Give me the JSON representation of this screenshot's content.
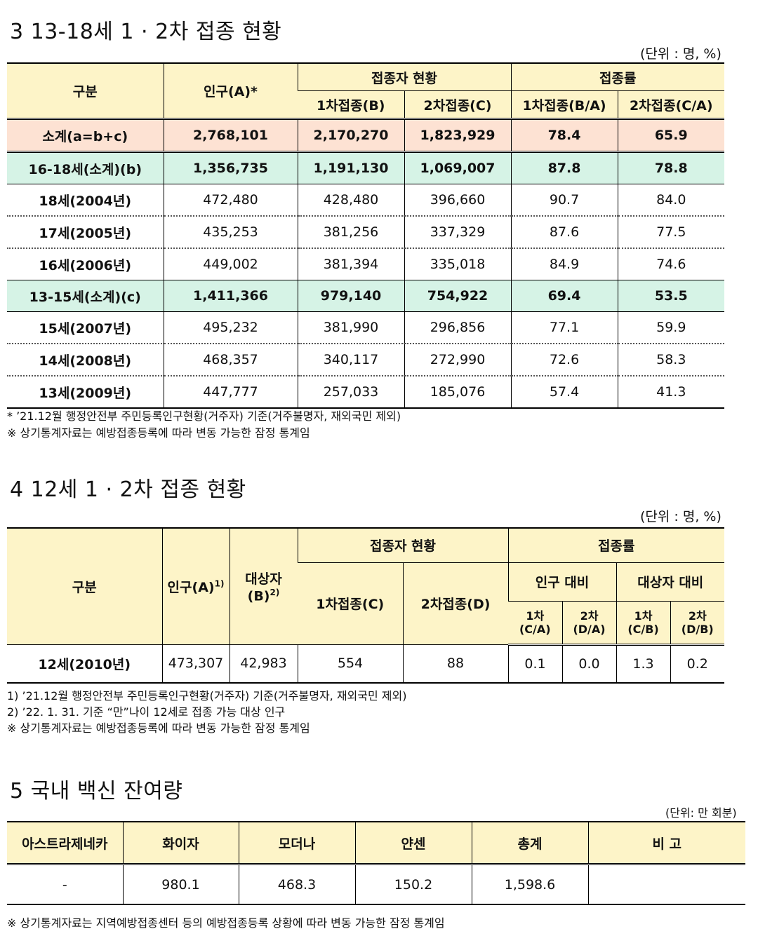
{
  "section3": {
    "title": "3 13-18세 1 · 2차 접종 현황",
    "unit": "(단위 : 명, %)",
    "headers": {
      "category": "구분",
      "population": "인구(A)*",
      "vaccinated_group": "접종자 현황",
      "rate_group": "접종률",
      "first": "1차접종(B)",
      "second": "2차접종(C)",
      "first_rate": "1차접종(B/A)",
      "second_rate": "2차접종(C/A)"
    },
    "rows": [
      {
        "label": "소계(a=b+c)",
        "pop": "2,768,101",
        "first": "2,170,270",
        "second": "1,823,929",
        "r1": "78.4",
        "r2": "65.9"
      },
      {
        "label": "16-18세(소계)(b)",
        "pop": "1,356,735",
        "first": "1,191,130",
        "second": "1,069,007",
        "r1": "87.8",
        "r2": "78.8"
      },
      {
        "label": "18세(2004년)",
        "pop": "472,480",
        "first": "428,480",
        "second": "396,660",
        "r1": "90.7",
        "r2": "84.0"
      },
      {
        "label": "17세(2005년)",
        "pop": "435,253",
        "first": "381,256",
        "second": "337,329",
        "r1": "87.6",
        "r2": "77.5"
      },
      {
        "label": "16세(2006년)",
        "pop": "449,002",
        "first": "381,394",
        "second": "335,018",
        "r1": "84.9",
        "r2": "74.6"
      },
      {
        "label": "13-15세(소계)(c)",
        "pop": "1,411,366",
        "first": "979,140",
        "second": "754,922",
        "r1": "69.4",
        "r2": "53.5"
      },
      {
        "label": "15세(2007년)",
        "pop": "495,232",
        "first": "381,990",
        "second": "296,856",
        "r1": "77.1",
        "r2": "59.9"
      },
      {
        "label": "14세(2008년)",
        "pop": "468,357",
        "first": "340,117",
        "second": "272,990",
        "r1": "72.6",
        "r2": "58.3"
      },
      {
        "label": "13세(2009년)",
        "pop": "447,777",
        "first": "257,033",
        "second": "185,076",
        "r1": "57.4",
        "r2": "41.3"
      }
    ],
    "notes": [
      "* ’21.12월 행정안전부 주민등록인구현황(거주자) 기준(거주불명자, 재외국민 제외)",
      "※ 상기통계자료는 예방접종등록에 따라 변동 가능한 잠정 통계임"
    ]
  },
  "section4": {
    "title": "4 12세 1 · 2차 접종 현황",
    "unit": "(단위 : 명, %)",
    "headers": {
      "category": "구분",
      "population": "인구(A)",
      "population_sup": "1)",
      "target_line1": "대상자",
      "target_line2": "(B)",
      "target_sup": "2)",
      "vaccinated_group": "접종자 현황",
      "rate_group": "접종률",
      "first": "1차접종(C)",
      "second": "2차접종(D)",
      "vs_pop": "인구 대비",
      "vs_target": "대상자 대비",
      "p1_line1": "1차",
      "p1_line2": "(C/A)",
      "p2_line1": "2차",
      "p2_line2": "(D/A)",
      "t1_line1": "1차",
      "t1_line2": "(C/B)",
      "t2_line1": "2차",
      "t2_line2": "(D/B)"
    },
    "row": {
      "label": "12세(2010년)",
      "pop": "473,307",
      "target": "42,983",
      "first": "554",
      "second": "88",
      "p1": "0.1",
      "p2": "0.0",
      "t1": "1.3",
      "t2": "0.2"
    },
    "notes": [
      "1) ’21.12월 행정안전부 주민등록인구현황(거주자) 기준(거주불명자, 재외국민 제외)",
      "2) ’22. 1. 31. 기준 “만”나이 12세로 접종 가능 대상 인구",
      "※ 상기통계자료는 예방접종등록에 따라 변동 가능한 잠정 통계임"
    ]
  },
  "section5": {
    "title": "5 국내 백신 잔여량",
    "unit": "(단위: 만 회분)",
    "headers": [
      "아스트라제네카",
      "화이자",
      "모더나",
      "얀센",
      "총계",
      "비 고"
    ],
    "row": [
      "-",
      "980.1",
      "468.3",
      "150.2",
      "1,598.6",
      ""
    ],
    "note": "※ 상기통계자료는 지역예방접종센터 등의 예방접종등록 상황에 따라 변동 가능한 잠정 통계임"
  }
}
